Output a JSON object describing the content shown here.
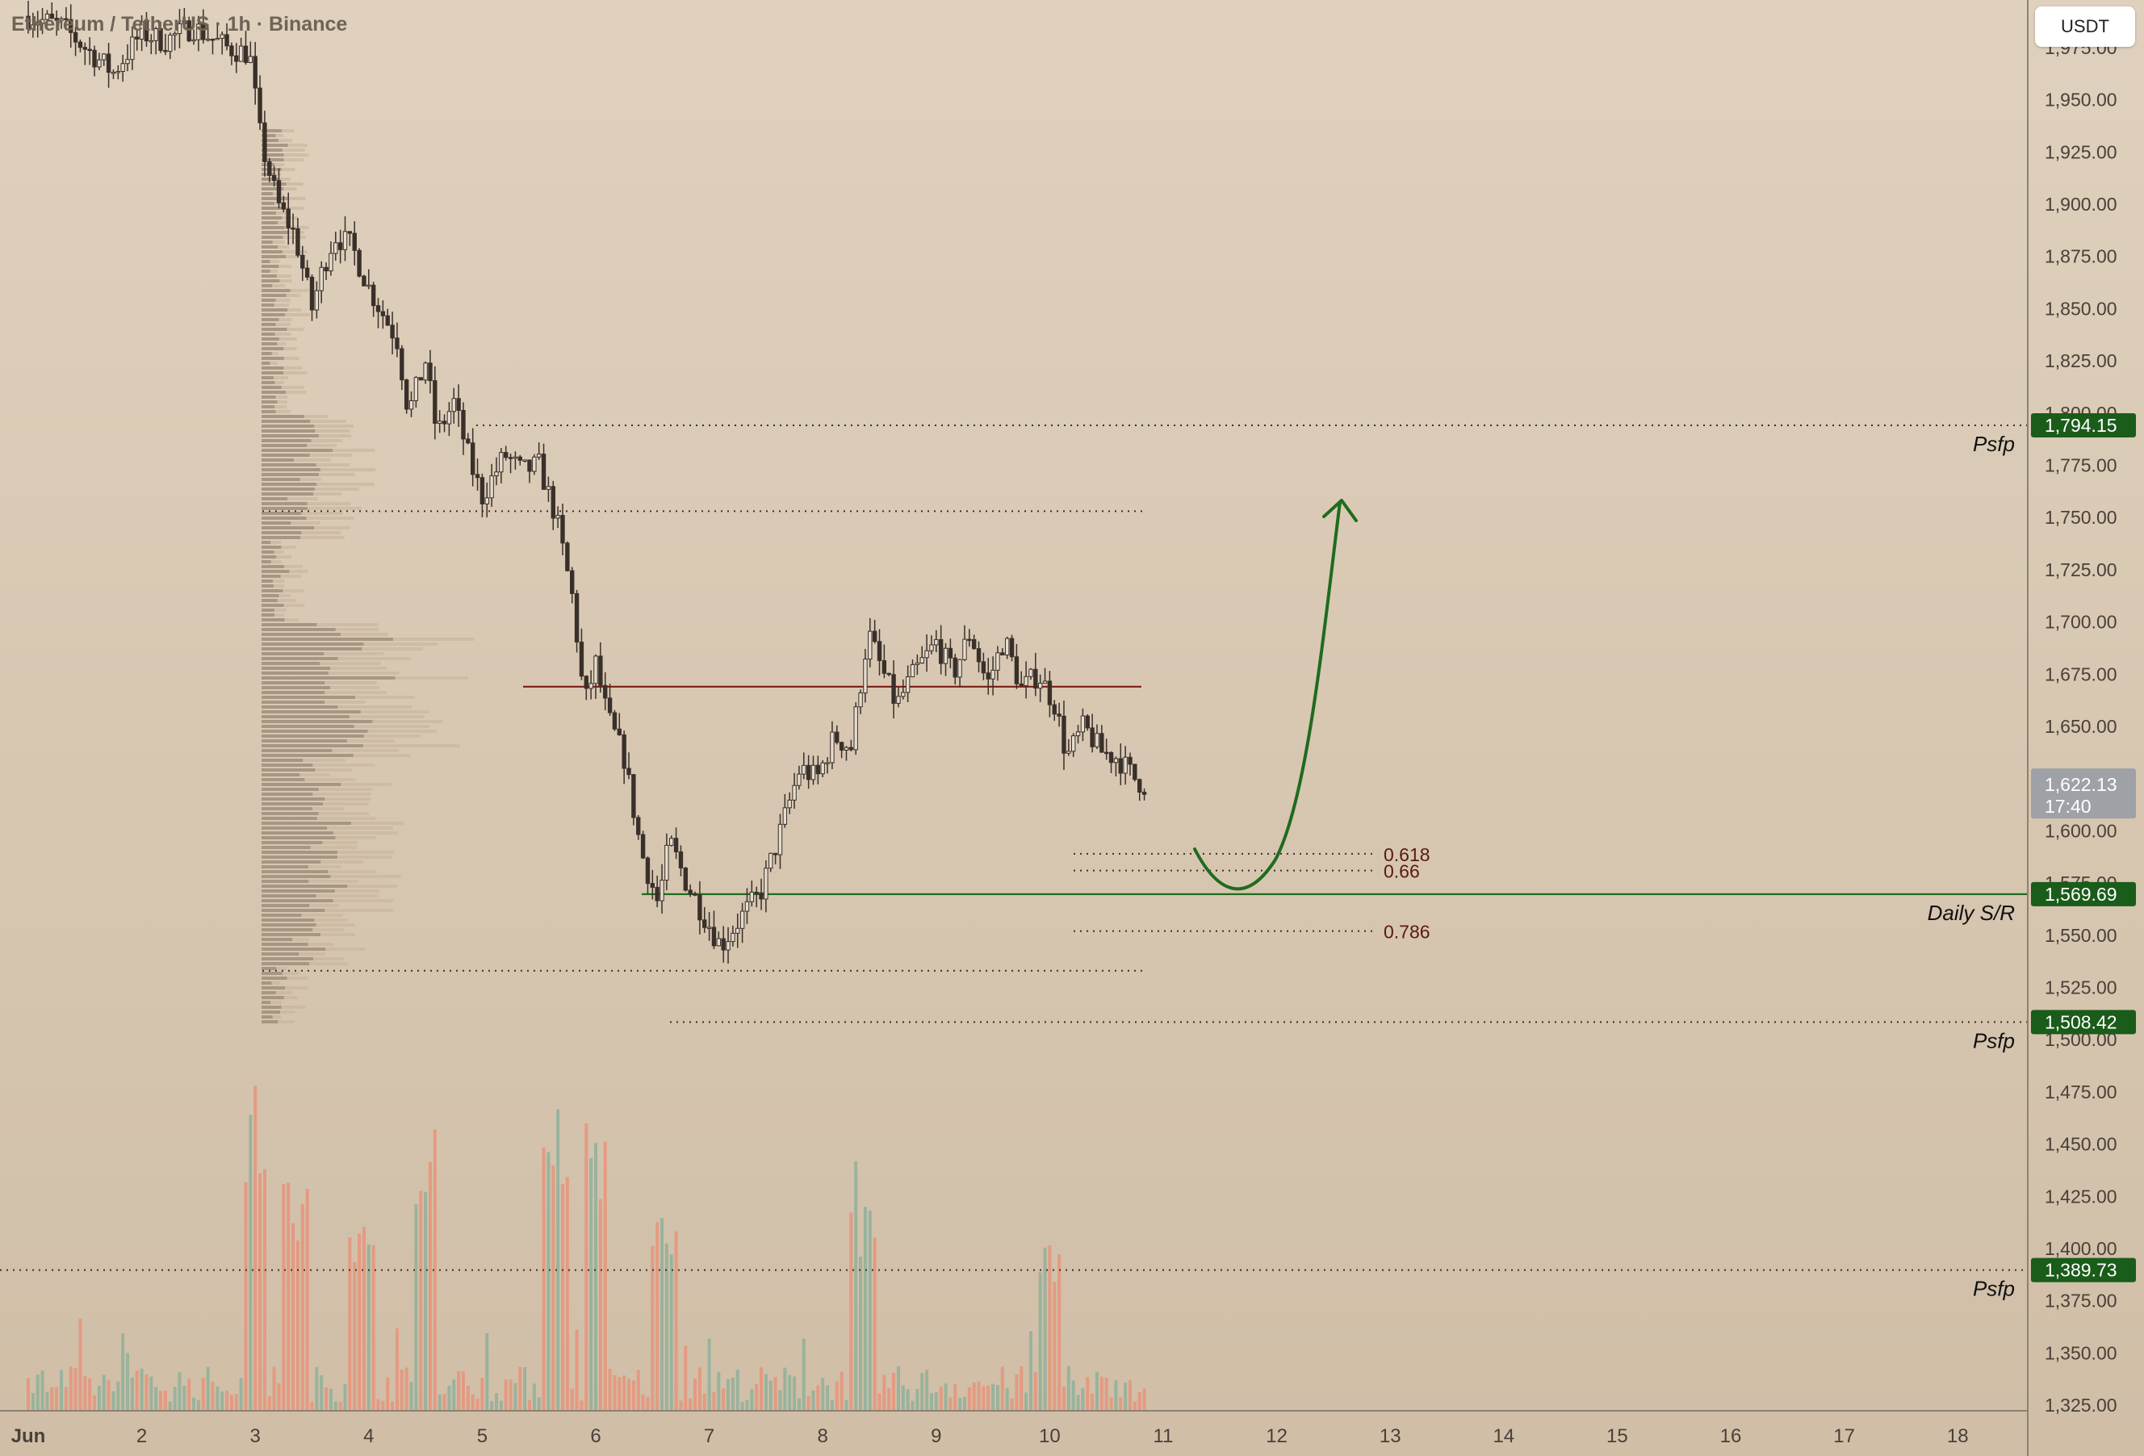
{
  "symbol": "Ethereum / TetherUS · 1h · Binance",
  "unit_button": "USDT",
  "colors": {
    "background_top": "#dfd1bd",
    "background_bottom": "#d0bea7",
    "candle": "#3a302a",
    "volume_up": "#8fb09a",
    "volume_down": "#e8937a",
    "profile_dark": "#9a8a78",
    "profile_light": "#c9b6a0",
    "support_line": "#1f6b1f",
    "resistance_line": "#7a1c14",
    "fib_label": "#5a1a10",
    "arrow": "#1f6b1f",
    "current_price_tag": "#9ea1a6",
    "level_tag": "#1a5c1a"
  },
  "chart_data": {
    "type": "candlestick",
    "ylim": [
      1320,
      1995
    ],
    "y_ticks": [
      1325,
      1350,
      1375,
      1400,
      1425,
      1450,
      1475,
      1500,
      1525,
      1550,
      1575,
      1600,
      1625,
      1650,
      1675,
      1700,
      1725,
      1750,
      1775,
      1800,
      1825,
      1850,
      1875,
      1900,
      1925,
      1950,
      1975
    ],
    "x_ticks": [
      "Jun",
      "2",
      "3",
      "4",
      "5",
      "6",
      "7",
      "8",
      "9",
      "10",
      "11",
      "12",
      "13",
      "14",
      "15",
      "16",
      "17",
      "18"
    ],
    "price_path": [
      [
        1,
        1990
      ],
      [
        1.3,
        1985
      ],
      [
        1.5,
        1975
      ],
      [
        1.75,
        1963
      ],
      [
        2.0,
        1982
      ],
      [
        2.2,
        1978
      ],
      [
        2.45,
        1985
      ],
      [
        2.75,
        1975
      ],
      [
        2.95,
        1972
      ],
      [
        3.05,
        1930
      ],
      [
        3.2,
        1900
      ],
      [
        3.35,
        1885
      ],
      [
        3.5,
        1850
      ],
      [
        3.6,
        1870
      ],
      [
        3.7,
        1885
      ],
      [
        3.85,
        1880
      ],
      [
        4.0,
        1860
      ],
      [
        4.25,
        1835
      ],
      [
        4.35,
        1800
      ],
      [
        4.5,
        1825
      ],
      [
        4.6,
        1790
      ],
      [
        4.75,
        1805
      ],
      [
        4.9,
        1775
      ],
      [
        5.0,
        1760
      ],
      [
        5.2,
        1780
      ],
      [
        5.35,
        1772
      ],
      [
        5.5,
        1775
      ],
      [
        5.65,
        1750
      ],
      [
        5.8,
        1710
      ],
      [
        5.9,
        1660
      ],
      [
        6.0,
        1680
      ],
      [
        6.1,
        1655
      ],
      [
        6.25,
        1635
      ],
      [
        6.4,
        1590
      ],
      [
        6.55,
        1565
      ],
      [
        6.65,
        1595
      ],
      [
        6.8,
        1575
      ],
      [
        6.95,
        1560
      ],
      [
        7.1,
        1545
      ],
      [
        7.3,
        1560
      ],
      [
        7.45,
        1570
      ],
      [
        7.6,
        1595
      ],
      [
        7.8,
        1630
      ],
      [
        7.95,
        1625
      ],
      [
        8.1,
        1645
      ],
      [
        8.25,
        1640
      ],
      [
        8.4,
        1695
      ],
      [
        8.5,
        1680
      ],
      [
        8.65,
        1660
      ],
      [
        8.8,
        1675
      ],
      [
        9.0,
        1690
      ],
      [
        9.15,
        1675
      ],
      [
        9.3,
        1695
      ],
      [
        9.45,
        1670
      ],
      [
        9.6,
        1692
      ],
      [
        9.75,
        1668
      ],
      [
        9.9,
        1675
      ],
      [
        10.05,
        1660
      ],
      [
        10.15,
        1635
      ],
      [
        10.3,
        1650
      ],
      [
        10.45,
        1638
      ],
      [
        10.6,
        1635
      ],
      [
        10.75,
        1625
      ],
      [
        10.83,
        1622
      ]
    ],
    "volume_spikes": [
      [
        3.0,
        1
      ],
      [
        3.35,
        0.65
      ],
      [
        3.95,
        0.55
      ],
      [
        4.5,
        0.75
      ],
      [
        5.65,
        1.0
      ],
      [
        6.0,
        0.9
      ],
      [
        6.6,
        0.55
      ],
      [
        8.35,
        0.55
      ],
      [
        10.0,
        0.45
      ]
    ]
  },
  "levels": {
    "psfp_top": {
      "label": "Psfp",
      "price": 1794.15,
      "tag": "1,794.15"
    },
    "psfp_mid": {
      "label": "Psfp",
      "price": 1508.42,
      "tag": "1,508.42"
    },
    "psfp_low": {
      "label": "Psfp",
      "price": 1389.73,
      "tag": "1,389.73"
    },
    "daily_sr": {
      "label": "Daily S/R",
      "price": 1569.69,
      "tag": "1,569.69"
    },
    "current": {
      "price": 1622.13,
      "tag": "1,622.13",
      "timer": "17:40"
    },
    "resistance": {
      "price": 1669
    },
    "range_high": {
      "price": 1753
    },
    "range_low": {
      "price": 1533
    }
  },
  "fib_levels": [
    {
      "label": "0.618",
      "price": 1589
    },
    {
      "label": "0.66",
      "price": 1581
    },
    {
      "label": "0.786",
      "price": 1552
    }
  ]
}
